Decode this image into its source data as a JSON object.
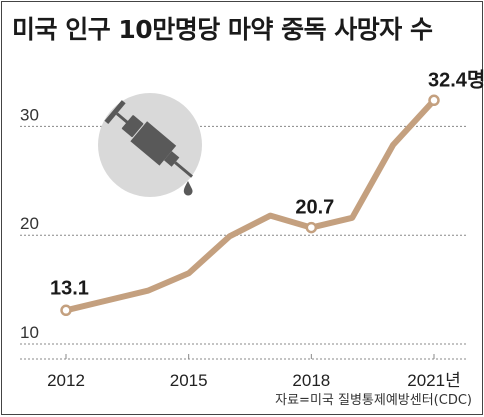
{
  "title": "미국 인구 10만명당 마약 중독 사망자 수",
  "source": "자료=미국 질병통제예방센터(CDC)",
  "colors": {
    "line": "#c4a07f",
    "grid": "#888888",
    "icon_circle": "#d9d9d9",
    "icon_fg": "#595959"
  },
  "icon": "syringe-icon",
  "chart_data": {
    "type": "line",
    "x": [
      2012,
      2013,
      2014,
      2015,
      2016,
      2017,
      2018,
      2019,
      2020,
      2021
    ],
    "y": [
      13.1,
      14.0,
      14.9,
      16.5,
      19.9,
      21.8,
      20.7,
      21.6,
      28.3,
      32.4
    ],
    "ylim": [
      10,
      35
    ],
    "yticks": [
      "30",
      "20",
      "10"
    ],
    "ytick_values": [
      30,
      20,
      10
    ],
    "xticks": [
      "2012",
      "2015",
      "2018",
      "2021년"
    ],
    "xtick_values": [
      2012,
      2015,
      2018,
      2021
    ],
    "labeled_points": [
      {
        "x": 2012,
        "text": "13.1"
      },
      {
        "x": 2018,
        "text": "20.7"
      },
      {
        "x": 2021,
        "text": "32.4명"
      }
    ],
    "grid": true
  }
}
